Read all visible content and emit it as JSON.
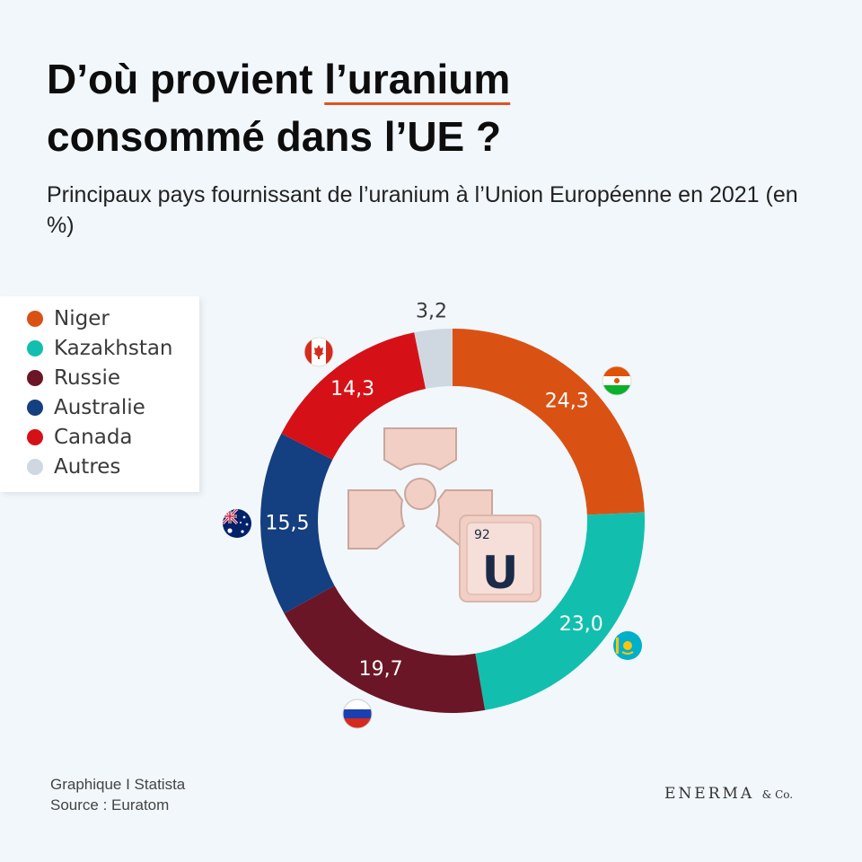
{
  "title_part1": "D’où provient ",
  "title_highlight": "l’uranium",
  "title_line2": "consommé dans l’UE ?",
  "subtitle": "Principaux pays fournissant de l’uranium à l’Union Européenne en 2021 (en %)",
  "source_line1": "Graphique I Statista",
  "source_line2": "Source : Euratom",
  "brand_main": "ENERMA",
  "brand_suffix": "& Co.",
  "uranium_tile": {
    "number": "92",
    "symbol": "U"
  },
  "chart_data": {
    "type": "pie",
    "donut": true,
    "legend_position": "left",
    "categories": [
      "Niger",
      "Kazakhstan",
      "Russie",
      "Australie",
      "Canada",
      "Autres"
    ],
    "values": [
      24.3,
      23.0,
      19.7,
      15.5,
      14.3,
      3.2
    ],
    "value_labels": [
      "24,3",
      "23,0",
      "19,7",
      "15,5",
      "14,3",
      "3,2"
    ],
    "colors": [
      "#d95214",
      "#12bfae",
      "#6b1626",
      "#143f80",
      "#d51117",
      "#cfd8e0"
    ],
    "flags": [
      "niger-flag",
      "kazakhstan-flag",
      "russia-flag",
      "australia-flag",
      "canada-flag",
      null
    ]
  }
}
